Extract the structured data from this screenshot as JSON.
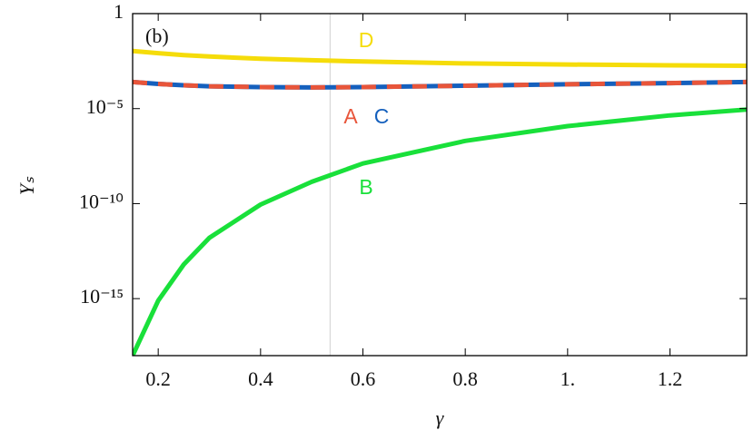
{
  "chart_data": {
    "type": "line",
    "xlabel": "γ",
    "ylabel": "Yₛ",
    "annotation": "(b)",
    "log_y": true,
    "xlim": [
      0.15,
      1.35
    ],
    "ylim": [
      1e-18,
      1
    ],
    "xticks": [
      0.2,
      0.4,
      0.6,
      0.8,
      {
        "value": 1,
        "label": "1."
      },
      1.2
    ],
    "yticks": [
      1,
      {
        "value": 1e-05,
        "label": "10⁻⁵"
      },
      {
        "value": 1e-10,
        "label": "10⁻¹⁰"
      },
      {
        "value": 1e-15,
        "label": "10⁻¹⁵"
      }
    ],
    "vlines": [
      0.536
    ],
    "vline_color": "#d9d9d9",
    "x": [
      0.15,
      0.2,
      0.25,
      0.3,
      0.4,
      0.5,
      0.6,
      0.8,
      1.0,
      1.2,
      1.35
    ],
    "series": [
      {
        "name": "B",
        "color": "#19e03a",
        "dashed": false,
        "values": [
          1e-18,
          7.9e-16,
          6.3e-14,
          1.6e-12,
          8.9e-11,
          1.4e-09,
          1.3e-08,
          2e-07,
          1.2e-06,
          4.4e-06,
          8.9e-06
        ]
      },
      {
        "name": "D",
        "color": "#f5dc0a",
        "dashed": false,
        "values": [
          0.0107,
          0.0083,
          0.0066,
          0.0055,
          0.0042,
          0.0035,
          0.003,
          0.0024,
          0.0021,
          0.0019,
          0.0018
        ]
      },
      {
        "name": "C",
        "color": "#1560bd",
        "dashed": false,
        "values": [
          0.00025,
          0.0002,
          0.00017,
          0.00015,
          0.000135,
          0.00013,
          0.000135,
          0.00016,
          0.00019,
          0.00022,
          0.00025
        ]
      },
      {
        "name": "A",
        "color": "#e8553a",
        "dashed": true,
        "values": [
          0.00025,
          0.0002,
          0.00017,
          0.00015,
          0.000135,
          0.00013,
          0.000135,
          0.00016,
          0.00019,
          0.00022,
          0.00025
        ]
      }
    ]
  }
}
